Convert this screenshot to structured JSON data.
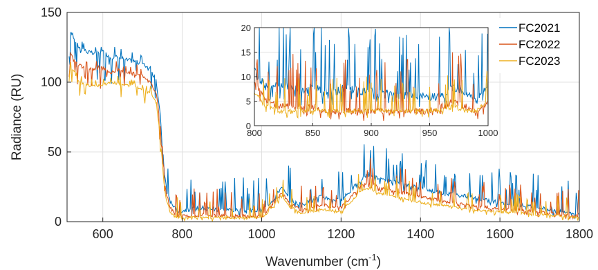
{
  "chart_data": {
    "type": "line",
    "xlabel": "Wavenumber (cm",
    "xlabel_sup": "-1",
    "xlabel_suffix": ")",
    "ylabel": "Radiance (RU)",
    "xlim": [
      510,
      1800
    ],
    "ylim": [
      0,
      150
    ],
    "xticks": [
      600,
      800,
      1000,
      1200,
      1400,
      1600,
      1800
    ],
    "yticks": [
      0,
      50,
      100,
      150
    ],
    "grid": true,
    "legend_position": "top-right",
    "series": [
      {
        "name": "FC2021",
        "color": "#0072BD",
        "x": [
          515,
          520,
          540,
          560,
          580,
          600,
          620,
          640,
          660,
          680,
          700,
          720,
          735,
          745,
          750,
          755,
          760,
          770,
          780,
          790,
          800,
          850,
          900,
          950,
          1000,
          1030,
          1050,
          1070,
          1100,
          1150,
          1200,
          1250,
          1270,
          1300,
          1350,
          1400,
          1450,
          1500,
          1550,
          1600,
          1650,
          1700,
          1750,
          1800
        ],
        "y": [
          110,
          136,
          125,
          122,
          120,
          122,
          118,
          118,
          116,
          115,
          113,
          110,
          100,
          75,
          55,
          35,
          25,
          15,
          10,
          8,
          8,
          10,
          9,
          8,
          8,
          16,
          25,
          16,
          12,
          18,
          15,
          30,
          35,
          30,
          27,
          24,
          21,
          19,
          16,
          14,
          12,
          10,
          8,
          6
        ]
      },
      {
        "name": "FC2022",
        "color": "#D95319",
        "x": [
          515,
          520,
          540,
          560,
          580,
          600,
          620,
          640,
          660,
          680,
          700,
          720,
          735,
          745,
          750,
          755,
          760,
          770,
          780,
          790,
          800,
          850,
          900,
          950,
          1000,
          1030,
          1050,
          1070,
          1100,
          1150,
          1200,
          1250,
          1270,
          1300,
          1350,
          1400,
          1450,
          1500,
          1550,
          1600,
          1650,
          1700,
          1750,
          1800
        ],
        "y": [
          105,
          120,
          112,
          110,
          109,
          110,
          107,
          109,
          107,
          106,
          104,
          100,
          92,
          68,
          48,
          30,
          20,
          10,
          6,
          4,
          4,
          5,
          4,
          4,
          4,
          13,
          21,
          13,
          8,
          12,
          10,
          26,
          28,
          24,
          21,
          18,
          15,
          13,
          11,
          9,
          8,
          7,
          5,
          4
        ]
      },
      {
        "name": "FC2023",
        "color": "#EDB120",
        "x": [
          515,
          520,
          540,
          560,
          580,
          600,
          620,
          640,
          660,
          680,
          700,
          720,
          735,
          745,
          750,
          755,
          760,
          770,
          780,
          790,
          800,
          850,
          900,
          950,
          1000,
          1030,
          1050,
          1070,
          1100,
          1150,
          1200,
          1250,
          1270,
          1300,
          1350,
          1400,
          1450,
          1500,
          1550,
          1600,
          1650,
          1700,
          1750,
          1800
        ],
        "y": [
          100,
          112,
          100,
          98,
          97,
          98,
          100,
          99,
          98,
          97,
          95,
          92,
          85,
          60,
          42,
          25,
          15,
          7,
          4,
          3,
          3,
          3,
          3,
          3,
          3,
          11,
          19,
          11,
          6,
          9,
          7,
          22,
          24,
          20,
          17,
          14,
          12,
          10,
          8,
          7,
          6,
          5,
          4,
          3
        ]
      }
    ],
    "inset": {
      "xlim": [
        800,
        1000
      ],
      "ylim": [
        0,
        20
      ],
      "xticks": [
        800,
        850,
        900,
        950,
        1000
      ],
      "yticks": [
        0,
        5,
        10,
        15,
        20
      ],
      "series": [
        {
          "name": "FC2021",
          "x": [
            800,
            810,
            820,
            830,
            840,
            850,
            860,
            870,
            880,
            890,
            900,
            910,
            920,
            930,
            940,
            950,
            960,
            970,
            980,
            990,
            1000
          ],
          "y": [
            11,
            8,
            8,
            8,
            7,
            8,
            7,
            7,
            8,
            7,
            7,
            7,
            6,
            6,
            6,
            6,
            6,
            8,
            7,
            5,
            8
          ]
        },
        {
          "name": "FC2022",
          "x": [
            800,
            810,
            820,
            830,
            840,
            850,
            860,
            870,
            880,
            890,
            900,
            910,
            920,
            930,
            940,
            950,
            960,
            970,
            980,
            990,
            1000
          ],
          "y": [
            9,
            5,
            4,
            4,
            4,
            4,
            3,
            3,
            3,
            3,
            3,
            3,
            3,
            3,
            3,
            3,
            4,
            5,
            4,
            3,
            5
          ]
        },
        {
          "name": "FC2023",
          "x": [
            800,
            810,
            820,
            830,
            840,
            850,
            860,
            870,
            880,
            890,
            900,
            910,
            920,
            930,
            940,
            950,
            960,
            970,
            980,
            990,
            1000
          ],
          "y": [
            7,
            4,
            3,
            3,
            3,
            3,
            3,
            3,
            3,
            3,
            3,
            3,
            3,
            3,
            3,
            3,
            3,
            4,
            3,
            3,
            5
          ]
        }
      ]
    }
  }
}
